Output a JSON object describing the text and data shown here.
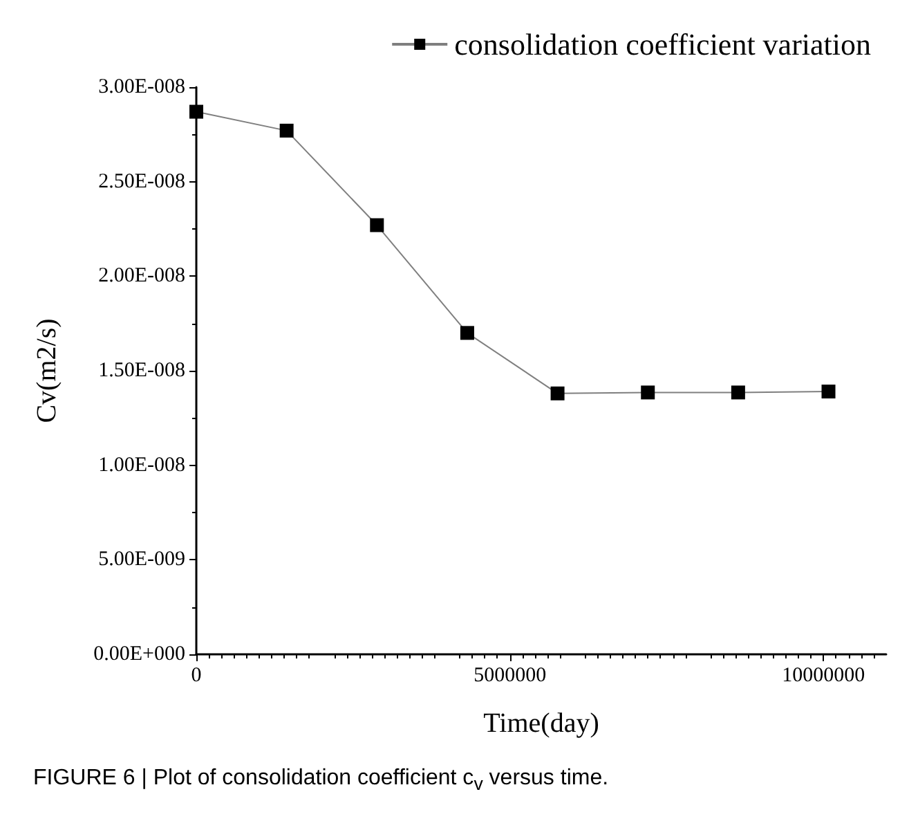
{
  "chart_data": {
    "type": "line",
    "xlabel": "Time(day)",
    "ylabel": "Cv(m2/s)",
    "x": [
      0,
      1440000,
      2880000,
      4320000,
      5760000,
      7200000,
      8640000,
      10080000
    ],
    "series": [
      {
        "name": "consolidation coefficient variation",
        "color": "#000000",
        "values": [
          2.87e-08,
          2.77e-08,
          2.27e-08,
          1.7e-08,
          1.38e-08,
          1.385e-08,
          1.385e-08,
          1.39e-08
        ]
      }
    ],
    "xlim": [
      0,
      11000000
    ],
    "xticks": [
      0,
      5000000,
      10000000
    ],
    "ylim": [
      0,
      3e-08
    ],
    "yticks": [
      {
        "value": 0,
        "label": "0.00E+000"
      },
      {
        "value": 5e-09,
        "label": "5.00E-009"
      },
      {
        "value": 1e-08,
        "label": "1.00E-008"
      },
      {
        "value": 1.5e-08,
        "label": "1.50E-008"
      },
      {
        "value": 2e-08,
        "label": "2.00E-008"
      },
      {
        "value": 2.5e-08,
        "label": "2.50E-008"
      },
      {
        "value": 3e-08,
        "label": "3.00E-008"
      }
    ],
    "grid": false,
    "legend": "top right",
    "marker": "square",
    "line_style": "solid",
    "annotations": [
      "FIGURE 6 | Plot of consolidation coefficient c$_{v}$ versus time."
    ]
  }
}
